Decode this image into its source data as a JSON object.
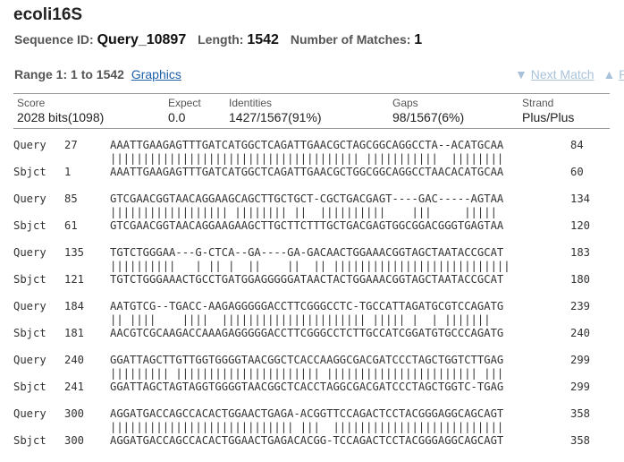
{
  "title": "ecoli16S",
  "sequence": {
    "id_label": "Sequence ID:",
    "id_value": "Query_10897",
    "length_label": "Length:",
    "length_value": "1542",
    "matches_label": "Number of Matches:",
    "matches_value": "1"
  },
  "range": {
    "label": "Range 1: 1 to 1542",
    "graphics_link": "Graphics",
    "next_match": "Next Match",
    "prev_match": "Pr",
    "next_arrow": "▼",
    "prev_arrow": "▲"
  },
  "stats": {
    "score": {
      "label": "Score",
      "value": "2028 bits(1098)"
    },
    "expect": {
      "label": "Expect",
      "value": "0.0"
    },
    "identities": {
      "label": "Identities",
      "value": "1427/1567(91%)"
    },
    "gaps": {
      "label": "Gaps",
      "value": "98/1567(6%)"
    },
    "strand": {
      "label": "Strand",
      "value": "Plus/Plus"
    }
  },
  "alignment": [
    {
      "query": {
        "label": "Query",
        "start": "27",
        "seq": "AAATTGAAGAGTTTGATCATGGCTCAGATTGAACGCTAGCGGCAGGCCTA--ACATGCAA",
        "end": "84"
      },
      "match": "|||||||||||||||||||||||||||||||||||||| |||||||||||  ||||||||",
      "sbjct": {
        "label": "Sbjct",
        "start": "1",
        "seq": "AAATTGAAGAGTTTGATCATGGCTCAGATTGAACGCTGGCGGCAGGCCTAACACATGCAA",
        "end": "60"
      }
    },
    {
      "query": {
        "label": "Query",
        "start": "85",
        "seq": "GTCGAACGGTAACAGGAAGCAGCTTGCTGCT-CGCTGACGAGT----GAC-----AGTAA",
        "end": "134"
      },
      "match": "|||||||||||||||||| |||||||| ||  ||||||||||    |||     |||||",
      "sbjct": {
        "label": "Sbjct",
        "start": "61",
        "seq": "GTCGAACGGTAACAGGAAGAAGCTTGCTTCTTTGCTGACGAGTGGCGGACGGGTGAGTAA",
        "end": "120"
      }
    },
    {
      "query": {
        "label": "Query",
        "start": "135",
        "seq": "TGTCTGGGAA---G-CTCA--GA----GA-GACAACTGGAAACGGTAGCTAATACCGCAT",
        "end": "183"
      },
      "match": "||||||||||   | || |  ||    ||  || |||||||||||||||||||||||||||",
      "sbjct": {
        "label": "Sbjct",
        "start": "121",
        "seq": "TGTCTGGGAAACTGCCTGATGGAGGGGGATAACTACTGGAAACGGTAGCTAATACCGCAT",
        "end": "180"
      }
    },
    {
      "query": {
        "label": "Query",
        "start": "184",
        "seq": "AATGTCG--TGACC-AAGAGGGGGACCTTCGGGCCTC-TGCCATTAGATGCGTCCAGATG",
        "end": "239"
      },
      "match": "|| ||||    ||||  |||||||||||||||||||||| ||||| |  | |||||||",
      "sbjct": {
        "label": "Sbjct",
        "start": "181",
        "seq": "AACGTCGCAAGACCAAAGAGGGGGACCTTCGGGCCTCTTGCCATCGGATGTGCCCAGATG",
        "end": "240"
      }
    },
    {
      "query": {
        "label": "Query",
        "start": "240",
        "seq": "GGATTAGCTTGTTGGTGGGGTAACGGCTCACCAAGGCGACGATCCCTAGCTGGTCTTGAG",
        "end": "299"
      },
      "match": "||||||||| |||||||||||||||||||||| ||||||||||||||||||||||| |||",
      "sbjct": {
        "label": "Sbjct",
        "start": "241",
        "seq": "GGATTAGCTAGTAGGTGGGGTAACGGCTCACCTAGGCGACGATCCCTAGCTGGTC-TGAG",
        "end": "299"
      }
    },
    {
      "query": {
        "label": "Query",
        "start": "300",
        "seq": "AGGATGACCAGCCACACTGGAACTGAGA-ACGGTTCCAGACTCCTACGGGAGGCAGCAGT",
        "end": "358"
      },
      "match": "|||||||||||||||||||||||||||| |||  ||||||||||||||||||||||||||",
      "sbjct": {
        "label": "Sbjct",
        "start": "300",
        "seq": "AGGATGACCAGCCACACTGGAACTGAGACACGG-TCCAGACTCCTACGGGAGGCAGCAGT",
        "end": "358"
      }
    }
  ]
}
